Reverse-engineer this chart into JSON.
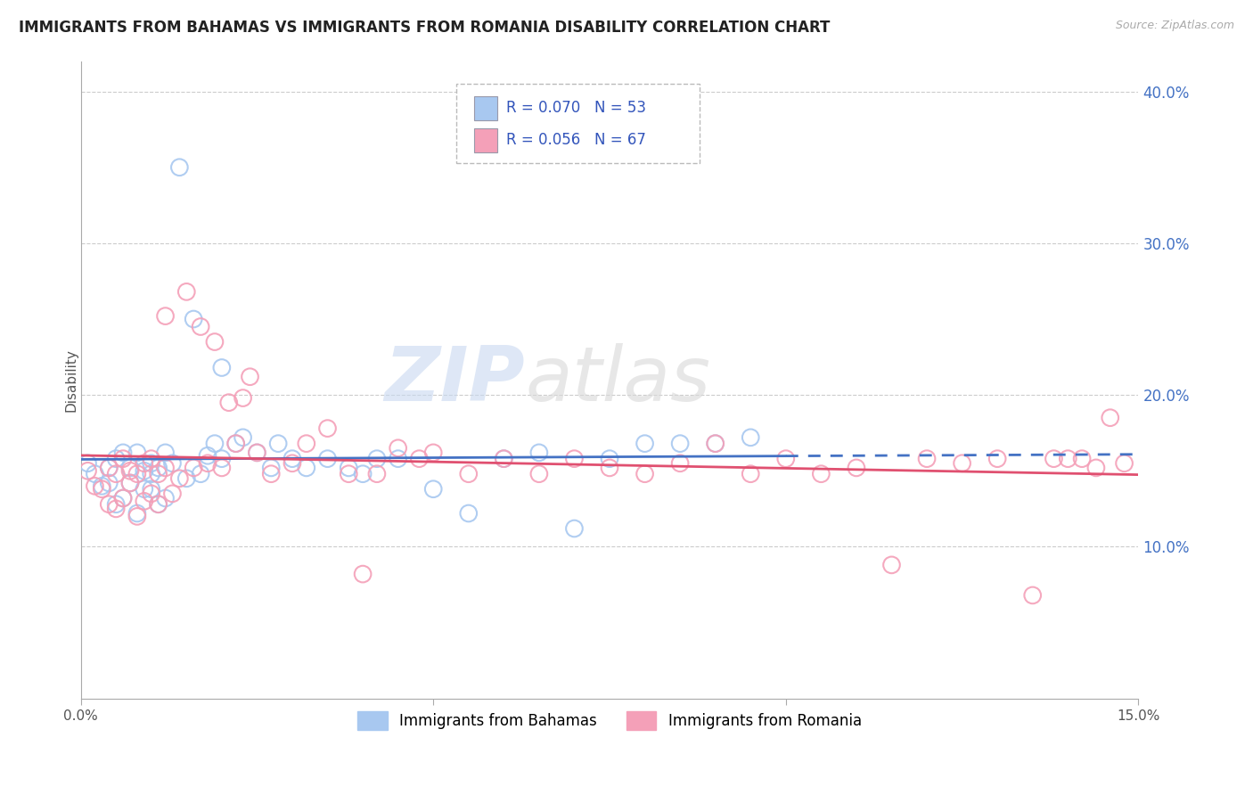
{
  "title": "IMMIGRANTS FROM BAHAMAS VS IMMIGRANTS FROM ROMANIA DISABILITY CORRELATION CHART",
  "source": "Source: ZipAtlas.com",
  "ylabel": "Disability",
  "xlim": [
    0.0,
    0.15
  ],
  "ylim": [
    0.0,
    0.42
  ],
  "xticks": [
    0.0,
    0.05,
    0.1,
    0.15
  ],
  "xtick_labels": [
    "0.0%",
    "",
    "",
    "15.0%"
  ],
  "yticks": [
    0.1,
    0.2,
    0.3,
    0.4
  ],
  "ytick_labels": [
    "10.0%",
    "20.0%",
    "30.0%",
    "40.0%"
  ],
  "legend_R_bahamas": "R = 0.070",
  "legend_N_bahamas": "N = 53",
  "legend_R_romania": "R = 0.056",
  "legend_N_romania": "N = 67",
  "color_bahamas": "#A8C8F0",
  "color_romania": "#F4A0B8",
  "color_trendline_bahamas": "#4472C4",
  "color_trendline_romania": "#E05070",
  "watermark_zip": "ZIP",
  "watermark_atlas": "atlas",
  "background_color": "#FFFFFF",
  "bahamas_x": [
    0.001,
    0.002,
    0.003,
    0.004,
    0.004,
    0.005,
    0.005,
    0.006,
    0.006,
    0.007,
    0.007,
    0.008,
    0.008,
    0.009,
    0.009,
    0.01,
    0.01,
    0.01,
    0.011,
    0.011,
    0.012,
    0.012,
    0.013,
    0.014,
    0.015,
    0.016,
    0.017,
    0.018,
    0.019,
    0.02,
    0.02,
    0.022,
    0.023,
    0.025,
    0.027,
    0.028,
    0.03,
    0.032,
    0.035,
    0.038,
    0.04,
    0.042,
    0.045,
    0.05,
    0.055,
    0.06,
    0.065,
    0.07,
    0.075,
    0.08,
    0.085,
    0.09,
    0.095
  ],
  "bahamas_y": [
    0.155,
    0.148,
    0.14,
    0.152,
    0.142,
    0.158,
    0.128,
    0.162,
    0.132,
    0.152,
    0.142,
    0.162,
    0.122,
    0.15,
    0.138,
    0.148,
    0.138,
    0.155,
    0.152,
    0.128,
    0.162,
    0.132,
    0.155,
    0.35,
    0.145,
    0.25,
    0.148,
    0.16,
    0.168,
    0.218,
    0.158,
    0.168,
    0.172,
    0.162,
    0.152,
    0.168,
    0.158,
    0.152,
    0.158,
    0.152,
    0.148,
    0.158,
    0.158,
    0.138,
    0.122,
    0.158,
    0.162,
    0.112,
    0.158,
    0.168,
    0.168,
    0.168,
    0.172
  ],
  "romania_x": [
    0.001,
    0.002,
    0.003,
    0.004,
    0.004,
    0.005,
    0.005,
    0.006,
    0.006,
    0.007,
    0.007,
    0.008,
    0.008,
    0.009,
    0.009,
    0.01,
    0.01,
    0.011,
    0.011,
    0.012,
    0.012,
    0.013,
    0.014,
    0.015,
    0.016,
    0.017,
    0.018,
    0.019,
    0.02,
    0.021,
    0.022,
    0.023,
    0.024,
    0.025,
    0.027,
    0.03,
    0.032,
    0.035,
    0.038,
    0.04,
    0.042,
    0.045,
    0.048,
    0.05,
    0.055,
    0.06,
    0.065,
    0.07,
    0.075,
    0.08,
    0.085,
    0.09,
    0.095,
    0.1,
    0.105,
    0.11,
    0.115,
    0.12,
    0.125,
    0.13,
    0.135,
    0.138,
    0.14,
    0.142,
    0.144,
    0.146,
    0.148
  ],
  "romania_y": [
    0.15,
    0.14,
    0.138,
    0.152,
    0.128,
    0.148,
    0.125,
    0.158,
    0.132,
    0.15,
    0.142,
    0.148,
    0.12,
    0.155,
    0.13,
    0.158,
    0.135,
    0.148,
    0.128,
    0.152,
    0.252,
    0.135,
    0.145,
    0.268,
    0.152,
    0.245,
    0.155,
    0.235,
    0.152,
    0.195,
    0.168,
    0.198,
    0.212,
    0.162,
    0.148,
    0.155,
    0.168,
    0.178,
    0.148,
    0.082,
    0.148,
    0.165,
    0.158,
    0.162,
    0.148,
    0.158,
    0.148,
    0.158,
    0.152,
    0.148,
    0.155,
    0.168,
    0.148,
    0.158,
    0.148,
    0.152,
    0.088,
    0.158,
    0.155,
    0.158,
    0.068,
    0.158,
    0.158,
    0.158,
    0.152,
    0.185,
    0.155
  ]
}
